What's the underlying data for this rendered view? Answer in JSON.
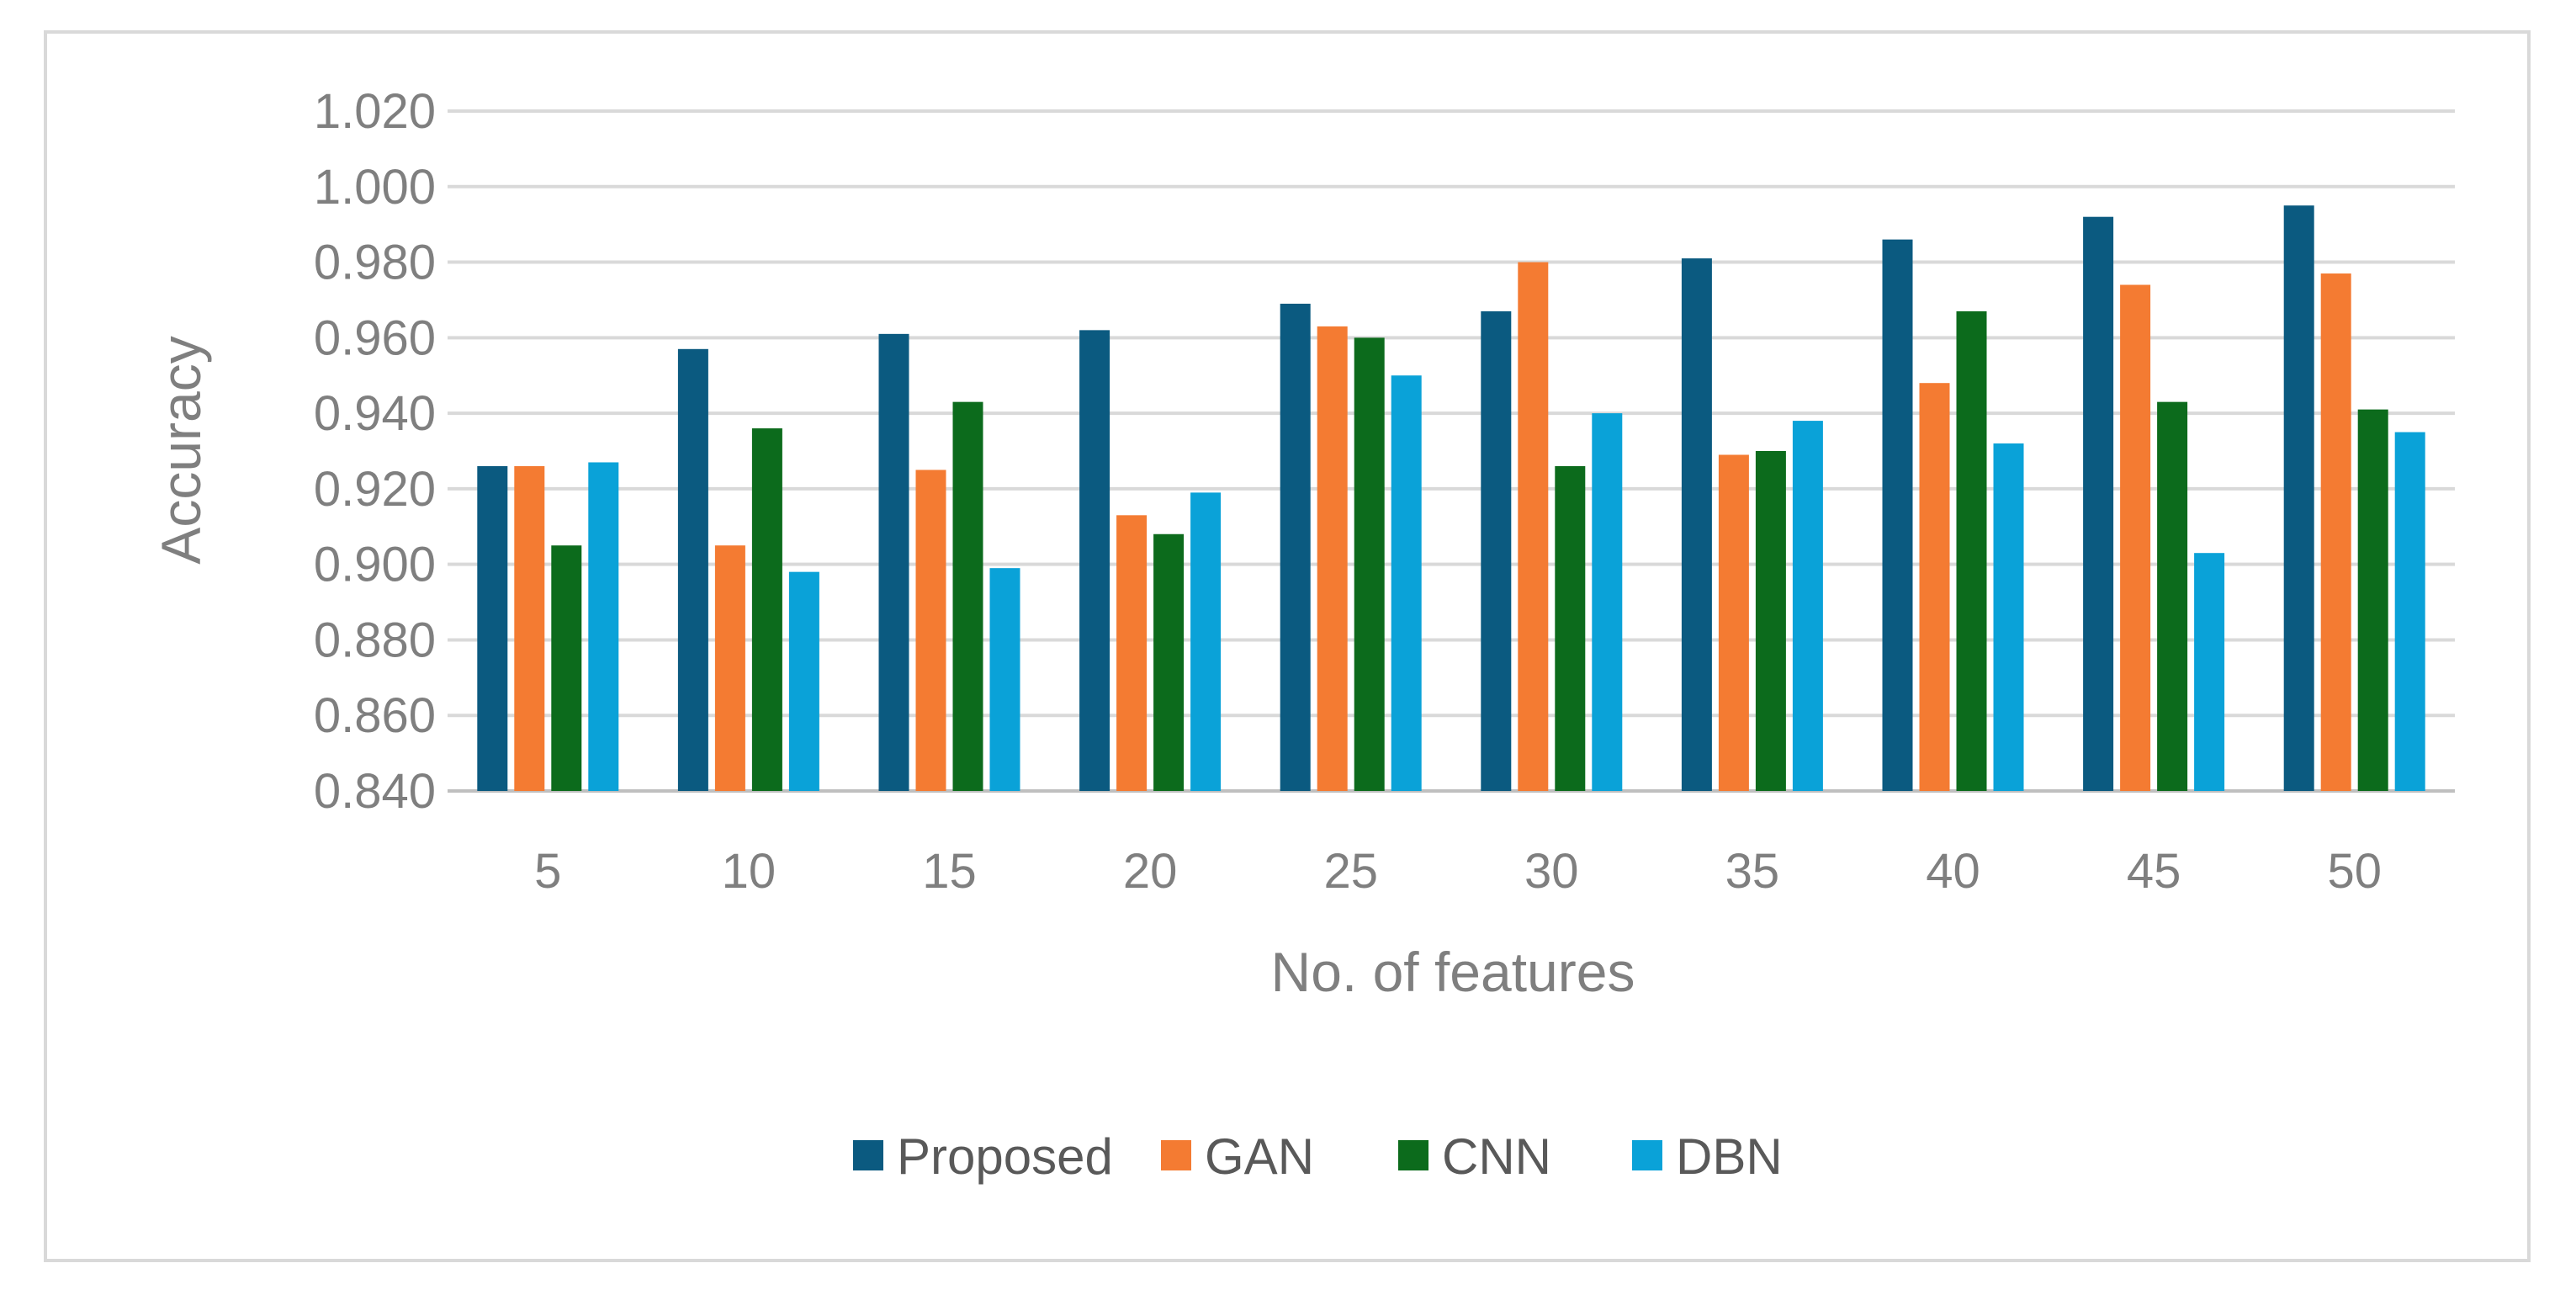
{
  "chart_data": {
    "type": "bar",
    "title": "",
    "xlabel": "No. of features",
    "ylabel": "Accuracy",
    "categories": [
      "5",
      "10",
      "15",
      "20",
      "25",
      "30",
      "35",
      "40",
      "45",
      "50"
    ],
    "series": [
      {
        "name": "Proposed",
        "color": "#0b5a80",
        "values": [
          0.926,
          0.957,
          0.961,
          0.962,
          0.969,
          0.967,
          0.981,
          0.986,
          0.992,
          0.995
        ]
      },
      {
        "name": "GAN",
        "color": "#f47b32",
        "values": [
          0.926,
          0.905,
          0.925,
          0.913,
          0.963,
          0.98,
          0.929,
          0.948,
          0.974,
          0.977
        ]
      },
      {
        "name": "CNN",
        "color": "#0c6b1c",
        "values": [
          0.905,
          0.936,
          0.943,
          0.908,
          0.96,
          0.926,
          0.93,
          0.967,
          0.943,
          0.941
        ]
      },
      {
        "name": "DBN",
        "color": "#0aa2d8",
        "values": [
          0.927,
          0.898,
          0.899,
          0.919,
          0.95,
          0.94,
          0.938,
          0.932,
          0.903,
          0.935
        ]
      }
    ],
    "ylim": [
      0.84,
      1.02
    ],
    "ytick_labels": [
      "0.840",
      "0.860",
      "0.880",
      "0.900",
      "0.920",
      "0.940",
      "0.960",
      "0.980",
      "1.000",
      "1.020"
    ],
    "grid": true,
    "legend_position": "bottom"
  }
}
